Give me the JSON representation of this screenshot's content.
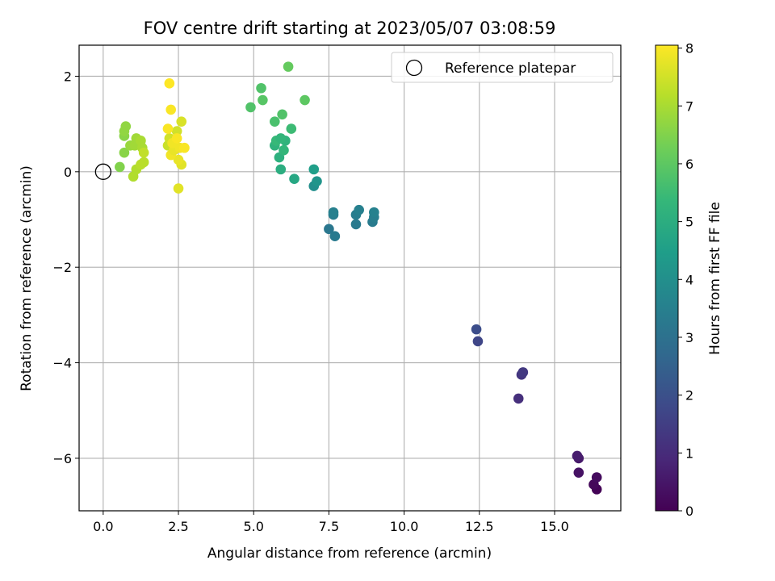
{
  "chart_data": {
    "type": "scatter",
    "title": "FOV centre drift starting at 2023/05/07 03:08:59",
    "xlabel": "Angular distance from reference (arcmin)",
    "ylabel": "Rotation from reference (arcmin)",
    "xlim": [
      -0.8,
      17.2
    ],
    "ylim": [
      -7.1,
      2.65
    ],
    "xticks": [
      0.0,
      2.5,
      5.0,
      7.5,
      10.0,
      12.5,
      15.0
    ],
    "xtick_labels": [
      "0.0",
      "2.5",
      "5.0",
      "7.5",
      "10.0",
      "12.5",
      "15.0"
    ],
    "yticks": [
      -6,
      -4,
      -2,
      0,
      2
    ],
    "ytick_labels": [
      "−6",
      "−4",
      "−2",
      "0",
      "2"
    ],
    "grid": true,
    "legend": {
      "placement": "top-right",
      "entries": [
        "Reference platepar"
      ]
    },
    "reference_point": {
      "x": 0,
      "y": 0
    },
    "colorbar": {
      "label": "Hours from first FF file",
      "colormap": "viridis",
      "range": [
        0,
        8.05
      ],
      "ticks": [
        0,
        1,
        2,
        3,
        4,
        5,
        6,
        7,
        8
      ],
      "tick_labels": [
        "0",
        "1",
        "2",
        "3",
        "4",
        "5",
        "6",
        "7",
        "8"
      ],
      "stops": [
        "#440154",
        "#482878",
        "#3e4989",
        "#31688e",
        "#26828e",
        "#1f9e89",
        "#35b779",
        "#6ece58",
        "#b5de2b",
        "#fde725"
      ]
    },
    "points": [
      {
        "x": 16.4,
        "y": -6.65,
        "t": 0.05
      },
      {
        "x": 16.3,
        "y": -6.55,
        "t": 0.15
      },
      {
        "x": 16.4,
        "y": -6.4,
        "t": 0.25
      },
      {
        "x": 15.8,
        "y": -6.3,
        "t": 0.4
      },
      {
        "x": 15.8,
        "y": -6.0,
        "t": 0.55
      },
      {
        "x": 15.75,
        "y": -5.95,
        "t": 0.65
      },
      {
        "x": 13.8,
        "y": -4.75,
        "t": 1.1
      },
      {
        "x": 13.9,
        "y": -4.25,
        "t": 1.25
      },
      {
        "x": 13.95,
        "y": -4.2,
        "t": 1.35
      },
      {
        "x": 12.45,
        "y": -3.55,
        "t": 1.7
      },
      {
        "x": 12.4,
        "y": -3.3,
        "t": 1.9
      },
      {
        "x": 7.5,
        "y": -1.2,
        "t": 3.2
      },
      {
        "x": 7.7,
        "y": -1.35,
        "t": 3.3
      },
      {
        "x": 7.65,
        "y": -0.9,
        "t": 3.4
      },
      {
        "x": 7.65,
        "y": -0.85,
        "t": 3.5
      },
      {
        "x": 8.4,
        "y": -1.1,
        "t": 3.3
      },
      {
        "x": 8.4,
        "y": -0.9,
        "t": 3.4
      },
      {
        "x": 8.5,
        "y": -0.8,
        "t": 3.5
      },
      {
        "x": 8.95,
        "y": -1.05,
        "t": 3.35
      },
      {
        "x": 9.0,
        "y": -0.95,
        "t": 3.45
      },
      {
        "x": 9.0,
        "y": -0.85,
        "t": 3.55
      },
      {
        "x": 7.0,
        "y": -0.3,
        "t": 4.0
      },
      {
        "x": 7.1,
        "y": -0.2,
        "t": 4.2
      },
      {
        "x": 7.0,
        "y": 0.05,
        "t": 4.5
      },
      {
        "x": 6.35,
        "y": -0.15,
        "t": 4.8
      },
      {
        "x": 5.9,
        "y": 0.05,
        "t": 5.0
      },
      {
        "x": 5.85,
        "y": 0.3,
        "t": 5.1
      },
      {
        "x": 5.7,
        "y": 0.55,
        "t": 5.2
      },
      {
        "x": 6.0,
        "y": 0.45,
        "t": 5.3
      },
      {
        "x": 6.05,
        "y": 0.65,
        "t": 5.2
      },
      {
        "x": 5.75,
        "y": 0.65,
        "t": 5.4
      },
      {
        "x": 5.9,
        "y": 0.7,
        "t": 5.3
      },
      {
        "x": 6.25,
        "y": 0.9,
        "t": 5.5
      },
      {
        "x": 5.7,
        "y": 1.05,
        "t": 5.7
      },
      {
        "x": 5.95,
        "y": 1.2,
        "t": 5.8
      },
      {
        "x": 4.9,
        "y": 1.35,
        "t": 5.8
      },
      {
        "x": 5.3,
        "y": 1.5,
        "t": 5.9
      },
      {
        "x": 5.25,
        "y": 1.75,
        "t": 5.8
      },
      {
        "x": 6.7,
        "y": 1.5,
        "t": 6.0
      },
      {
        "x": 6.15,
        "y": 2.2,
        "t": 6.1
      },
      {
        "x": 0.55,
        "y": 0.1,
        "t": 6.5
      },
      {
        "x": 0.7,
        "y": 0.4,
        "t": 6.6
      },
      {
        "x": 0.7,
        "y": 0.75,
        "t": 6.6
      },
      {
        "x": 0.7,
        "y": 0.85,
        "t": 6.7
      },
      {
        "x": 0.75,
        "y": 0.95,
        "t": 6.7
      },
      {
        "x": 0.9,
        "y": 0.55,
        "t": 6.8
      },
      {
        "x": 1.05,
        "y": 0.55,
        "t": 6.9
      },
      {
        "x": 1.1,
        "y": 0.7,
        "t": 6.9
      },
      {
        "x": 1.25,
        "y": 0.65,
        "t": 7.0
      },
      {
        "x": 1.3,
        "y": 0.5,
        "t": 7.0
      },
      {
        "x": 1.0,
        "y": -0.1,
        "t": 7.1
      },
      {
        "x": 1.1,
        "y": 0.05,
        "t": 7.1
      },
      {
        "x": 1.25,
        "y": 0.15,
        "t": 7.2
      },
      {
        "x": 1.35,
        "y": 0.2,
        "t": 7.2
      },
      {
        "x": 1.35,
        "y": 0.4,
        "t": 7.3
      },
      {
        "x": 2.15,
        "y": 0.55,
        "t": 7.4
      },
      {
        "x": 2.2,
        "y": 0.7,
        "t": 7.5
      },
      {
        "x": 2.45,
        "y": 0.85,
        "t": 7.5
      },
      {
        "x": 2.6,
        "y": 1.05,
        "t": 7.6
      },
      {
        "x": 2.5,
        "y": -0.35,
        "t": 7.7
      },
      {
        "x": 2.6,
        "y": 0.15,
        "t": 7.7
      },
      {
        "x": 2.5,
        "y": 0.25,
        "t": 7.8
      },
      {
        "x": 2.25,
        "y": 0.35,
        "t": 7.9
      },
      {
        "x": 2.35,
        "y": 0.45,
        "t": 7.8
      },
      {
        "x": 2.55,
        "y": 0.5,
        "t": 7.9
      },
      {
        "x": 2.7,
        "y": 0.5,
        "t": 8.0
      },
      {
        "x": 2.3,
        "y": 0.6,
        "t": 7.9
      },
      {
        "x": 2.45,
        "y": 0.7,
        "t": 8.0
      },
      {
        "x": 2.15,
        "y": 0.9,
        "t": 8.0
      },
      {
        "x": 2.25,
        "y": 1.3,
        "t": 8.0
      },
      {
        "x": 2.2,
        "y": 1.85,
        "t": 8.05
      }
    ]
  }
}
